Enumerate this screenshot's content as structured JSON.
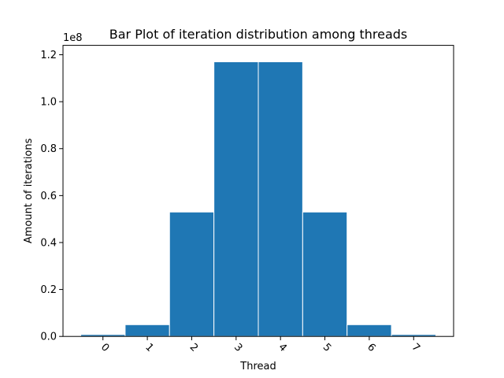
{
  "chart_data": {
    "type": "bar",
    "title": "Bar Plot of iteration distribution among threads",
    "xlabel": "Thread",
    "ylabel": "Amount of iterations",
    "categories": [
      "0",
      "1",
      "2",
      "3",
      "4",
      "5",
      "6",
      "7"
    ],
    "values": [
      820000,
      5000000,
      53000000,
      117000000,
      117000000,
      53000000,
      5000000,
      820000
    ],
    "ylim": [
      0,
      124000000
    ],
    "y_ticks": [
      0,
      20000000,
      40000000,
      60000000,
      80000000,
      100000000,
      120000000
    ],
    "y_tick_labels": [
      "0.0",
      "0.2",
      "0.4",
      "0.6",
      "0.8",
      "1.0",
      "1.2"
    ],
    "y_scale_label": "1e8",
    "bar_color": "#1f77b4",
    "grid": false,
    "legend": "none"
  }
}
